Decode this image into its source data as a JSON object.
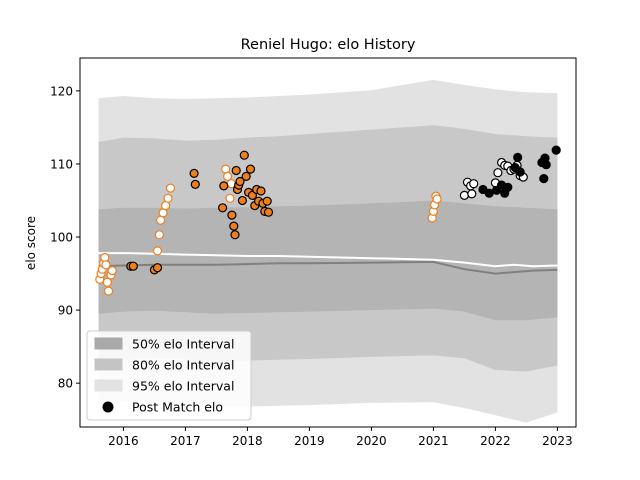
{
  "chart_data": {
    "type": "scatter",
    "title": "Reniel Hugo: elo History",
    "xlabel": "",
    "ylabel": "elo score",
    "xlim": [
      2015.3,
      2023.3
    ],
    "ylim": [
      74.0,
      124.5
    ],
    "x_ticks": [
      2016,
      2017,
      2018,
      2019,
      2020,
      2021,
      2022,
      2023
    ],
    "y_ticks": [
      80,
      90,
      100,
      110,
      120
    ],
    "grid": false,
    "legend_position": "lower-left",
    "legend": [
      {
        "label": "50% elo Interval",
        "kind": "band",
        "color": "#a9a9a9"
      },
      {
        "label": "80% elo Interval",
        "kind": "band",
        "color": "#c4c4c4"
      },
      {
        "label": "95% elo Interval",
        "kind": "band",
        "color": "#e2e2e2"
      },
      {
        "label": "Post Match elo",
        "kind": "marker",
        "color": "#000000"
      }
    ],
    "colors": {
      "band95": "#e2e2e2",
      "band80": "#c8c8c8",
      "band50": "#b4b4b4",
      "mean_line": "#ffffff",
      "median_line": "#808080",
      "orange": "#ee7f1e",
      "black": "#000000",
      "white": "#ffffff"
    },
    "bands": {
      "x": [
        2015.6,
        2016.0,
        2016.5,
        2017.0,
        2017.5,
        2018.0,
        2018.5,
        2019.0,
        2020.0,
        2021.0,
        2021.5,
        2022.0,
        2022.5,
        2023.0
      ],
      "p95_low": [
        76.5,
        77.5,
        77.6,
        77.2,
        76.8,
        76.8,
        76.9,
        77.0,
        77.3,
        77.4,
        76.6,
        75.6,
        74.6,
        76.0
      ],
      "p95_high": [
        119.0,
        119.3,
        119.0,
        118.9,
        119.0,
        119.1,
        119.3,
        119.5,
        120.1,
        121.5,
        120.8,
        120.2,
        119.8,
        119.7
      ],
      "p80_low": [
        83.0,
        83.2,
        83.4,
        83.3,
        82.8,
        83.1,
        83.2,
        83.3,
        83.6,
        83.8,
        83.4,
        81.8,
        81.6,
        82.4
      ],
      "p80_high": [
        113.0,
        113.6,
        113.5,
        113.2,
        113.3,
        113.6,
        113.8,
        114.1,
        114.7,
        115.3,
        114.8,
        114.1,
        113.8,
        113.6
      ],
      "p50_low": [
        89.5,
        89.8,
        89.9,
        89.7,
        89.5,
        89.6,
        89.7,
        89.8,
        90.0,
        90.2,
        89.8,
        88.6,
        88.6,
        89.0
      ],
      "p50_high": [
        103.8,
        104.0,
        104.0,
        103.9,
        104.0,
        104.1,
        104.2,
        104.3,
        104.6,
        105.0,
        104.6,
        104.2,
        104.0,
        103.8
      ]
    },
    "mean_line": {
      "x": [
        2015.6,
        2016.0,
        2016.5,
        2017.0,
        2017.5,
        2018.0,
        2018.5,
        2019.0,
        2020.0,
        2021.0,
        2021.5,
        2022.0,
        2022.3,
        2022.6,
        2023.0
      ],
      "y": [
        97.8,
        97.8,
        97.7,
        97.6,
        97.5,
        97.4,
        97.4,
        97.3,
        97.1,
        96.9,
        96.5,
        96.0,
        96.2,
        96.0,
        96.1
      ]
    },
    "median_line": {
      "x": [
        2015.6,
        2016.0,
        2016.5,
        2017.0,
        2017.5,
        2018.0,
        2018.5,
        2019.0,
        2020.0,
        2021.0,
        2021.5,
        2022.0,
        2022.3,
        2022.6,
        2023.0
      ],
      "y": [
        96.0,
        96.1,
        96.2,
        96.2,
        96.2,
        96.3,
        96.4,
        96.4,
        96.5,
        96.6,
        95.6,
        95.0,
        95.2,
        95.4,
        95.5
      ]
    },
    "series": [
      {
        "face": "white",
        "edge": "orange",
        "points": [
          [
            2015.62,
            94.2
          ],
          [
            2015.64,
            95.0
          ],
          [
            2015.66,
            95.6
          ],
          [
            2015.68,
            96.4
          ],
          [
            2015.7,
            97.2
          ],
          [
            2015.72,
            96.2
          ],
          [
            2015.74,
            93.8
          ],
          [
            2015.76,
            92.6
          ],
          [
            2015.8,
            94.8
          ],
          [
            2015.82,
            95.4
          ],
          [
            2016.55,
            98.1
          ],
          [
            2016.58,
            100.3
          ],
          [
            2016.6,
            102.3
          ],
          [
            2016.64,
            103.3
          ],
          [
            2016.68,
            104.3
          ],
          [
            2016.72,
            105.3
          ],
          [
            2016.76,
            106.7
          ],
          [
            2017.65,
            109.3
          ],
          [
            2017.68,
            108.3
          ],
          [
            2017.72,
            105.3
          ],
          [
            2017.74,
            107.3
          ],
          [
            2020.98,
            102.6
          ],
          [
            2021.0,
            103.5
          ],
          [
            2021.02,
            104.4
          ],
          [
            2021.04,
            105.6
          ],
          [
            2021.06,
            105.2
          ]
        ]
      },
      {
        "face": "orange",
        "edge": "black",
        "points": [
          [
            2016.12,
            96.0
          ],
          [
            2016.16,
            96.0
          ],
          [
            2016.5,
            95.5
          ],
          [
            2016.55,
            95.8
          ],
          [
            2017.14,
            108.7
          ],
          [
            2017.16,
            107.2
          ],
          [
            2017.6,
            104.0
          ],
          [
            2017.62,
            107.0
          ],
          [
            2017.75,
            103.0
          ],
          [
            2017.78,
            101.5
          ],
          [
            2017.8,
            100.3
          ],
          [
            2017.82,
            109.1
          ],
          [
            2017.84,
            106.5
          ],
          [
            2017.86,
            107.1
          ],
          [
            2017.88,
            107.6
          ],
          [
            2017.92,
            105.0
          ],
          [
            2017.95,
            111.2
          ],
          [
            2017.98,
            108.3
          ],
          [
            2018.02,
            106.1
          ],
          [
            2018.05,
            109.3
          ],
          [
            2018.08,
            105.7
          ],
          [
            2018.12,
            104.3
          ],
          [
            2018.15,
            106.5
          ],
          [
            2018.18,
            104.9
          ],
          [
            2018.22,
            106.3
          ],
          [
            2018.25,
            104.6
          ],
          [
            2018.28,
            103.5
          ],
          [
            2018.32,
            104.9
          ],
          [
            2018.34,
            103.4
          ]
        ]
      },
      {
        "face": "white",
        "edge": "black",
        "points": [
          [
            2021.5,
            105.7
          ],
          [
            2021.55,
            107.5
          ],
          [
            2021.6,
            107.0
          ],
          [
            2021.62,
            105.9
          ],
          [
            2021.65,
            107.3
          ],
          [
            2022.0,
            107.4
          ],
          [
            2022.04,
            108.8
          ],
          [
            2022.1,
            110.2
          ],
          [
            2022.15,
            109.8
          ],
          [
            2022.2,
            109.7
          ],
          [
            2022.25,
            109.1
          ],
          [
            2022.3,
            109.3
          ],
          [
            2022.35,
            109.8
          ],
          [
            2022.4,
            108.4
          ],
          [
            2022.45,
            108.2
          ]
        ]
      },
      {
        "face": "black",
        "edge": "black",
        "points": [
          [
            2021.8,
            106.5
          ],
          [
            2021.9,
            106.0
          ],
          [
            2022.02,
            106.4
          ],
          [
            2022.1,
            107.1
          ],
          [
            2022.15,
            106.0
          ],
          [
            2022.2,
            106.8
          ],
          [
            2022.32,
            109.5
          ],
          [
            2022.36,
            110.9
          ],
          [
            2022.4,
            108.9
          ],
          [
            2022.75,
            110.2
          ],
          [
            2022.78,
            108.0
          ],
          [
            2022.8,
            110.8
          ],
          [
            2022.82,
            109.9
          ],
          [
            2022.98,
            111.9
          ]
        ]
      }
    ]
  }
}
